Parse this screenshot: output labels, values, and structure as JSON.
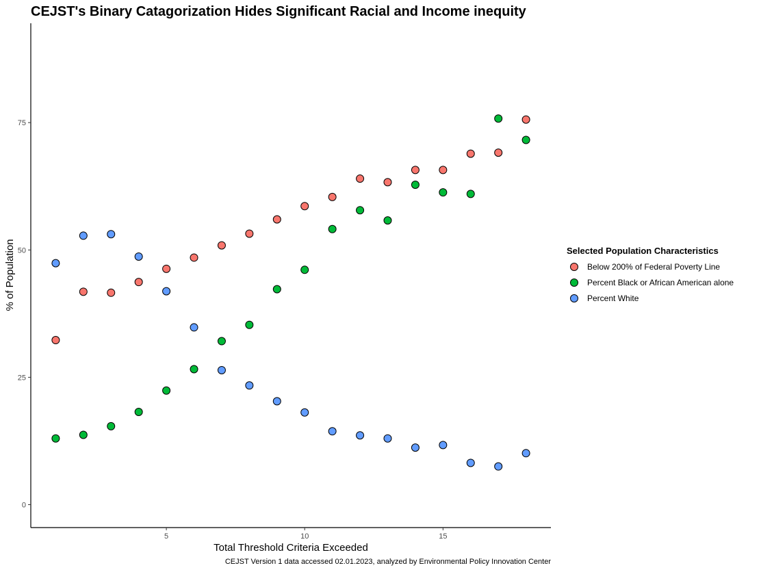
{
  "chart_data": {
    "type": "scatter",
    "title": "CEJST's Binary Catagorization Hides Significant Racial and Income inequity",
    "xlabel": "Total Threshold Criteria Exceeded",
    "ylabel": "% of Population",
    "caption": "CEJST Version 1 data accessed 02.01.2023, analyzed by Environmental Policy Innovation Center",
    "xlim": [
      0.1,
      18.9
    ],
    "ylim": [
      -4.5,
      94.5
    ],
    "xticks": [
      5,
      10,
      15
    ],
    "yticks": [
      0,
      25,
      50,
      75
    ],
    "grid": false,
    "legend": {
      "title": "Selected Population Characteristics",
      "position": "right"
    },
    "series": [
      {
        "name": "Below 200% of Federal Poverty Line",
        "color": "#F8766D",
        "x": [
          1,
          2,
          3,
          4,
          5,
          6,
          7,
          8,
          9,
          10,
          11,
          12,
          13,
          14,
          15,
          16,
          17,
          18
        ],
        "y": [
          32.3,
          41.8,
          41.6,
          43.7,
          46.3,
          48.5,
          50.9,
          53.2,
          56.0,
          58.6,
          60.4,
          64.0,
          63.3,
          65.7,
          65.7,
          68.9,
          69.1,
          75.6
        ]
      },
      {
        "name": "Percent Black or African American alone",
        "color": "#00BA38",
        "x": [
          1,
          2,
          3,
          4,
          5,
          6,
          7,
          8,
          9,
          10,
          11,
          12,
          13,
          14,
          15,
          16,
          17,
          18
        ],
        "y": [
          13.0,
          13.7,
          15.4,
          18.2,
          22.4,
          26.6,
          32.1,
          35.3,
          42.3,
          46.1,
          54.1,
          57.8,
          55.8,
          62.8,
          61.3,
          61.0,
          75.8,
          71.6
        ]
      },
      {
        "name": "Percent White",
        "color": "#619CFF",
        "x": [
          1,
          2,
          3,
          4,
          5,
          6,
          7,
          8,
          9,
          10,
          11,
          12,
          13,
          14,
          15,
          16,
          17,
          18
        ],
        "y": [
          47.4,
          52.8,
          53.1,
          48.7,
          41.9,
          34.8,
          26.4,
          23.4,
          20.3,
          18.1,
          14.4,
          13.6,
          13.0,
          11.2,
          11.7,
          8.2,
          7.5,
          10.1
        ]
      }
    ]
  }
}
